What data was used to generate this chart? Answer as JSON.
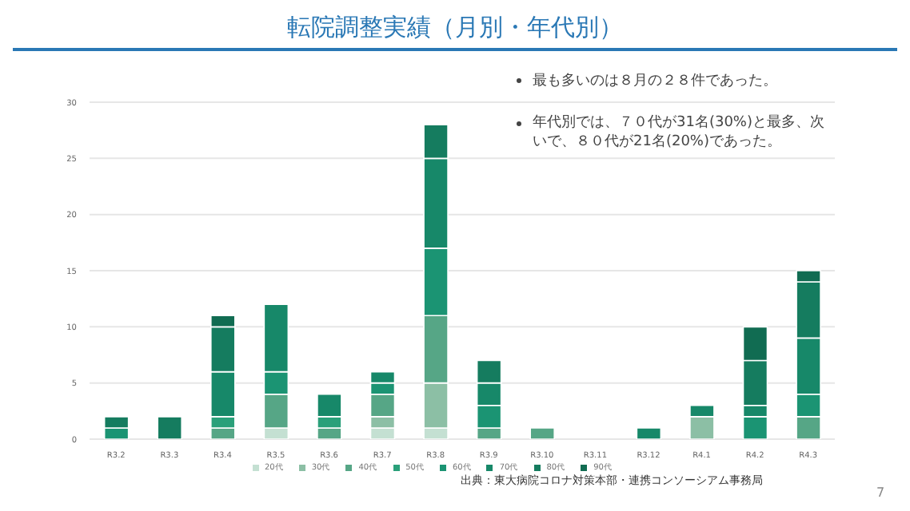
{
  "chart_data": {
    "type": "bar",
    "title": "転院調整実績（月別・年代別）",
    "categories": [
      "R3.2",
      "R3.3",
      "R3.4",
      "R3.5",
      "R3.6",
      "R3.7",
      "R3.8",
      "R3.9",
      "R3.10",
      "R3.11",
      "R3.12",
      "R4.1",
      "R4.2",
      "R4.3"
    ],
    "stacked": true,
    "ylim": [
      0,
      30
    ],
    "yticks": [
      0,
      5,
      10,
      15,
      20,
      25,
      30
    ],
    "grid": "y",
    "legend": "bottom",
    "series": [
      {
        "name": "20代",
        "color": "#c4e0d2",
        "values": [
          0,
          0,
          0,
          1,
          0,
          1,
          1,
          0,
          0,
          0,
          0,
          0,
          0,
          0
        ]
      },
      {
        "name": "30代",
        "color": "#8cbfa5",
        "values": [
          0,
          0,
          0,
          0,
          0,
          1,
          4,
          0,
          0,
          0,
          0,
          2,
          0,
          0
        ]
      },
      {
        "name": "40代",
        "color": "#56a686",
        "values": [
          0,
          0,
          1,
          3,
          1,
          2,
          6,
          1,
          1,
          0,
          0,
          0,
          0,
          2
        ]
      },
      {
        "name": "50代",
        "color": "#2aa07a",
        "values": [
          0,
          0,
          1,
          0,
          1,
          0,
          0,
          0,
          0,
          0,
          0,
          0,
          0,
          0
        ]
      },
      {
        "name": "60代",
        "color": "#1b9473",
        "values": [
          1,
          0,
          0,
          2,
          0,
          1,
          6,
          2,
          0,
          0,
          0,
          0,
          2,
          2
        ]
      },
      {
        "name": "70代",
        "color": "#178869",
        "values": [
          0,
          0,
          4,
          6,
          2,
          1,
          8,
          2,
          0,
          0,
          1,
          1,
          1,
          5
        ]
      },
      {
        "name": "80代",
        "color": "#157c5f",
        "values": [
          1,
          2,
          4,
          0,
          0,
          0,
          3,
          2,
          0,
          0,
          0,
          0,
          4,
          5
        ]
      },
      {
        "name": "90代",
        "color": "#116c52",
        "values": [
          0,
          0,
          1,
          0,
          0,
          0,
          0,
          0,
          0,
          0,
          0,
          0,
          3,
          1
        ]
      }
    ],
    "annotations": [
      "最も多いのは８月の２８件であった。",
      "年代別では、７０代が31名(30%)と最多、次いで、８０代が21名(20%)であった。",
      "出典：東大病院コロナ対策本部・連携コンソーシアム事務局",
      "7"
    ]
  }
}
